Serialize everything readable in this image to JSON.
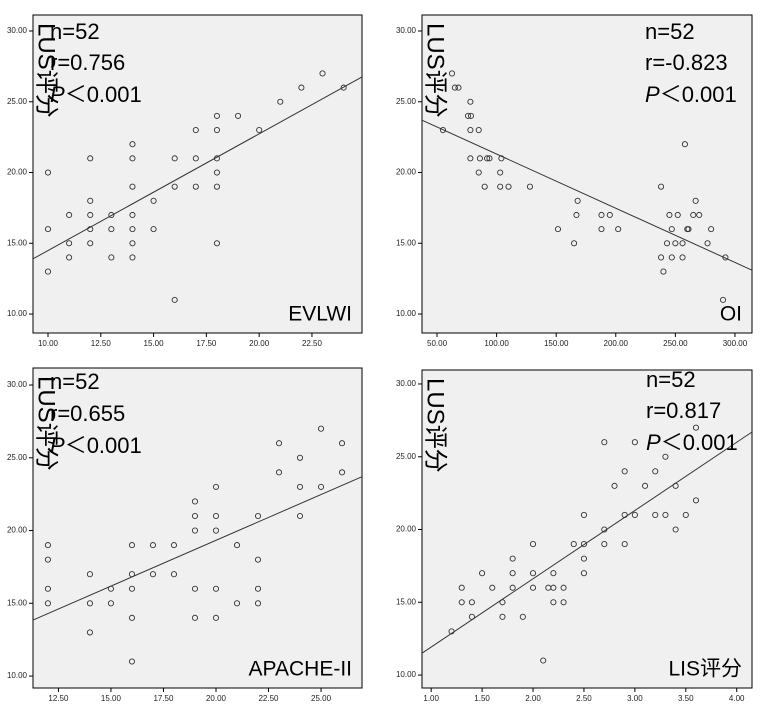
{
  "chart_data": [
    {
      "type": "scatter",
      "ylabel": "LUS评分",
      "xlabel": "EVLWI",
      "annotations": {
        "n": "n=52",
        "r": "r=0.756",
        "p_symbol": "P",
        "p_text": "＜0.001"
      },
      "xlim": [
        9.29,
        24.87
      ],
      "ylim": [
        8.66,
        31.13
      ],
      "xticks": [
        {
          "value": 10,
          "label": "10.00"
        },
        {
          "value": 12.5,
          "label": "12.50"
        },
        {
          "value": 15,
          "label": "15.00"
        },
        {
          "value": 17.5,
          "label": "17.50"
        },
        {
          "value": 20,
          "label": "20.00"
        },
        {
          "value": 22.5,
          "label": "22.50"
        }
      ],
      "yticks": [
        {
          "value": 10,
          "label": "10.00"
        },
        {
          "value": 15,
          "label": "15.00"
        },
        {
          "value": 20,
          "label": "20.00"
        },
        {
          "value": 25,
          "label": "25.00"
        },
        {
          "value": 30,
          "label": "30.00"
        }
      ],
      "marker_color": "#333333",
      "line_color": "#333333",
      "x": [
        10,
        10,
        10,
        11,
        11,
        11,
        12,
        12,
        12,
        12,
        12,
        13,
        13,
        13,
        14,
        14,
        14,
        14,
        14,
        14,
        14,
        15,
        15,
        16,
        16,
        16,
        17,
        17,
        17,
        18,
        18,
        18,
        18,
        18,
        18,
        19,
        20,
        21,
        22,
        23,
        24
      ],
      "values": [
        20,
        16,
        13,
        17,
        15,
        14,
        21,
        18,
        17,
        16,
        15,
        17,
        16,
        14,
        22,
        21,
        19,
        17,
        16,
        15,
        14,
        18,
        16,
        21,
        19,
        11,
        23,
        21,
        19,
        24,
        23,
        21,
        20,
        19,
        15,
        24,
        23,
        25,
        26,
        27,
        26
      ],
      "trend": {
        "x": [
          9.29,
          24.87
        ],
        "y": [
          13.9,
          26.75
        ]
      }
    },
    {
      "type": "scatter",
      "ylabel": "LUS评分",
      "xlabel": "OI",
      "annotations": {
        "n": "n=52",
        "r": "r=-0.823",
        "p_symbol": "P",
        "p_text": "＜0.001"
      },
      "xlim": [
        37.4,
        314.3
      ],
      "ylim": [
        8.66,
        31.13
      ],
      "xticks": [
        {
          "value": 50,
          "label": "50.00"
        },
        {
          "value": 100,
          "label": "100.00"
        },
        {
          "value": 150,
          "label": "150.00"
        },
        {
          "value": 200,
          "label": "200.00"
        },
        {
          "value": 250,
          "label": "250.00"
        },
        {
          "value": 300,
          "label": "300.00"
        }
      ],
      "yticks": [
        {
          "value": 10,
          "label": "10.00"
        },
        {
          "value": 15,
          "label": "15.00"
        },
        {
          "value": 20,
          "label": "20.00"
        },
        {
          "value": 25,
          "label": "25.00"
        },
        {
          "value": 30,
          "label": "30.00"
        }
      ],
      "marker_color": "#333333",
      "line_color": "#333333",
      "x": [
        55,
        62.6,
        65,
        68,
        78,
        76,
        78.5,
        78,
        85,
        78,
        85,
        86,
        92,
        94,
        90,
        103,
        104,
        103,
        110,
        128,
        151.5,
        165,
        167,
        168,
        188,
        188,
        195,
        202,
        238,
        238,
        240,
        243,
        245,
        247,
        247,
        250,
        252,
        256,
        256,
        258,
        260,
        261,
        265,
        267,
        270,
        277,
        280,
        290,
        292
      ],
      "values": [
        23,
        27,
        26,
        26,
        25,
        24,
        24,
        23,
        23,
        21,
        20,
        21,
        21,
        21,
        19,
        20,
        21,
        19,
        19,
        19,
        16,
        15,
        17,
        18,
        17,
        16,
        17,
        16,
        19,
        14,
        13,
        15,
        17,
        16,
        14,
        15,
        17,
        15,
        14,
        22,
        16,
        16,
        17,
        18,
        17,
        15,
        16,
        11,
        14
      ],
      "trend": {
        "x": [
          37.4,
          314.3
        ],
        "y": [
          23.7,
          13.1
        ]
      }
    },
    {
      "type": "scatter",
      "ylabel": "LUS评分",
      "xlabel": "APACHE-II",
      "annotations": {
        "n": "n=52",
        "r": "r=0.655",
        "p_symbol": "P",
        "p_text": "＜0.001"
      },
      "xlim": [
        11.29,
        26.95
      ],
      "ylim": [
        9.18,
        31.17
      ],
      "xticks": [
        {
          "value": 12.5,
          "label": "12.50"
        },
        {
          "value": 15,
          "label": "15.00"
        },
        {
          "value": 17.5,
          "label": "17.50"
        },
        {
          "value": 20,
          "label": "20.00"
        },
        {
          "value": 22.5,
          "label": "22.50"
        },
        {
          "value": 25,
          "label": "25.00"
        }
      ],
      "yticks": [
        {
          "value": 10,
          "label": "10.00"
        },
        {
          "value": 15,
          "label": "15.00"
        },
        {
          "value": 20,
          "label": "20.00"
        },
        {
          "value": 25,
          "label": "25.00"
        },
        {
          "value": 30,
          "label": "30.00"
        }
      ],
      "marker_color": "#333333",
      "line_color": "#333333",
      "x": [
        12,
        12,
        12,
        12,
        14,
        14,
        14,
        15,
        15,
        16,
        16,
        16,
        16,
        16,
        17,
        17,
        18,
        18,
        19,
        19,
        19,
        19,
        19,
        20,
        20,
        20,
        20,
        20,
        21,
        21,
        22,
        22,
        22,
        22,
        23,
        23,
        24,
        24,
        24,
        25,
        25,
        26,
        26
      ],
      "values": [
        19,
        18,
        16,
        15,
        17,
        15,
        13,
        16,
        15,
        19,
        17,
        16,
        14,
        11,
        19,
        17,
        19,
        17,
        22,
        21,
        20,
        16,
        14,
        23,
        21,
        20,
        16,
        14,
        19,
        15,
        21,
        18,
        16,
        15,
        26,
        24,
        25,
        23,
        21,
        27,
        23,
        26,
        24
      ],
      "trend": {
        "x": [
          11.29,
          26.95
        ],
        "y": [
          13.85,
          23.7
        ]
      }
    },
    {
      "type": "scatter",
      "ylabel": "LUS评分",
      "xlabel": "LIS评分",
      "annotations": {
        "n": "n=52",
        "r": "r=0.817",
        "p_symbol": "P",
        "p_text": "＜0.001"
      },
      "xlim": [
        0.91,
        4.15
      ],
      "ylim": [
        9.11,
        30.96
      ],
      "xticks": [
        {
          "value": 1,
          "label": "1.00"
        },
        {
          "value": 1.5,
          "label": "1.50"
        },
        {
          "value": 2,
          "label": "2.00"
        },
        {
          "value": 2.5,
          "label": "2.50"
        },
        {
          "value": 3,
          "label": "3.00"
        },
        {
          "value": 3.5,
          "label": "3.50"
        },
        {
          "value": 4,
          "label": "4.00"
        }
      ],
      "yticks": [
        {
          "value": 10,
          "label": "10.00"
        },
        {
          "value": 15,
          "label": "15.00"
        },
        {
          "value": 20,
          "label": "20.00"
        },
        {
          "value": 25,
          "label": "25.00"
        },
        {
          "value": 30,
          "label": "30.00"
        }
      ],
      "marker_color": "#333333",
      "line_color": "#333333",
      "x": [
        1.2,
        1.3,
        1.3,
        1.4,
        1.4,
        1.5,
        1.6,
        1.7,
        1.7,
        1.8,
        1.8,
        1.8,
        1.9,
        2.0,
        2.0,
        2.0,
        2.1,
        2.15,
        2.2,
        2.2,
        2.2,
        2.3,
        2.3,
        2.4,
        2.5,
        2.5,
        2.5,
        2.5,
        2.7,
        2.7,
        2.7,
        2.8,
        2.9,
        2.9,
        2.9,
        3.0,
        3.0,
        3.1,
        3.2,
        3.2,
        3.3,
        3.3,
        3.4,
        3.4,
        3.5,
        3.6,
        3.6
      ],
      "values": [
        13,
        16,
        15,
        14,
        15,
        17,
        16,
        15,
        14,
        18,
        17,
        16,
        14,
        19,
        17,
        16,
        11,
        16,
        17,
        16,
        15,
        16,
        15,
        19,
        21,
        19,
        18,
        17,
        26,
        20,
        19,
        23,
        24,
        21,
        19,
        26,
        21,
        23,
        24,
        21,
        25,
        21,
        23,
        20,
        21,
        27,
        22
      ],
      "trend": {
        "x": [
          0.91,
          4.15
        ],
        "y": [
          11.5,
          26.7
        ]
      }
    }
  ]
}
